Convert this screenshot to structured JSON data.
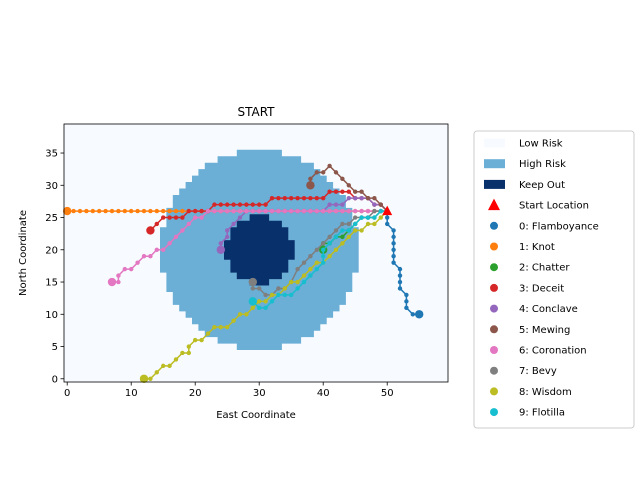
{
  "chart_data": {
    "type": "scatter",
    "title": "START",
    "xlabel": "East Coordinate",
    "ylabel": "North Coordinate",
    "xlim": [
      -0.5,
      59.5
    ],
    "ylim": [
      -0.5,
      39.5
    ],
    "x_ticks": [
      0,
      10,
      20,
      30,
      40,
      50
    ],
    "y_ticks": [
      0,
      5,
      10,
      15,
      20,
      25,
      30,
      35
    ],
    "grid": false,
    "legend_placement": "outside right",
    "risk_map": {
      "low_risk_color": "#f7fbff",
      "high_risk_color": "#6baed6",
      "keep_out_color": "#08306b",
      "high_risk_center": [
        30,
        20
      ],
      "high_risk_radius": 15.3,
      "keep_out_center": [
        30,
        20
      ],
      "keep_out_radius": 5.3
    },
    "start_location": {
      "label": "Start Location",
      "x": 50,
      "y": 26,
      "color": "#ff0000"
    },
    "legend": [
      {
        "label": "Low Risk",
        "kind": "patch",
        "color": "#f7fbff"
      },
      {
        "label": "High Risk",
        "kind": "patch",
        "color": "#6baed6"
      },
      {
        "label": "Keep Out",
        "kind": "patch",
        "color": "#08306b"
      },
      {
        "label": "Start Location",
        "kind": "triangle",
        "color": "#ff0000"
      },
      {
        "label": "0: Flamboyance",
        "kind": "dot",
        "color": "#1f77b4"
      },
      {
        "label": "1: Knot",
        "kind": "dot",
        "color": "#ff7f0e"
      },
      {
        "label": "2: Chatter",
        "kind": "dot",
        "color": "#2ca02c"
      },
      {
        "label": "3: Deceit",
        "kind": "dot",
        "color": "#d62728"
      },
      {
        "label": "4: Conclave",
        "kind": "dot",
        "color": "#9467bd"
      },
      {
        "label": "5: Mewing",
        "kind": "dot",
        "color": "#8c564b"
      },
      {
        "label": "6: Coronation",
        "kind": "dot",
        "color": "#e377c2"
      },
      {
        "label": "7: Bevy",
        "kind": "dot",
        "color": "#7f7f7f"
      },
      {
        "label": "8: Wisdom",
        "kind": "dot",
        "color": "#bcbd22"
      },
      {
        "label": "9: Flotilla",
        "kind": "dot",
        "color": "#17becf"
      }
    ],
    "series": [
      {
        "name": "0: Flamboyance",
        "color": "#1f77b4",
        "points": [
          [
            50,
            26
          ],
          [
            50,
            25
          ],
          [
            50,
            24
          ],
          [
            51,
            23
          ],
          [
            51,
            22
          ],
          [
            51,
            21
          ],
          [
            51,
            20
          ],
          [
            51,
            19
          ],
          [
            51,
            18
          ],
          [
            52,
            17
          ],
          [
            52,
            16
          ],
          [
            52,
            15
          ],
          [
            52,
            14
          ],
          [
            53,
            13
          ],
          [
            53,
            12
          ],
          [
            53,
            11
          ],
          [
            54,
            10
          ],
          [
            55,
            10
          ]
        ]
      },
      {
        "name": "1: Knot",
        "color": "#ff7f0e",
        "points": [
          [
            50,
            26
          ],
          [
            49,
            26
          ],
          [
            48,
            26
          ],
          [
            47,
            26
          ],
          [
            46,
            26
          ],
          [
            45,
            26
          ],
          [
            44,
            26
          ],
          [
            43,
            26
          ],
          [
            42,
            26
          ],
          [
            41,
            26
          ],
          [
            40,
            26
          ],
          [
            39,
            26
          ],
          [
            38,
            26
          ],
          [
            37,
            26
          ],
          [
            36,
            26
          ],
          [
            35,
            26
          ],
          [
            34,
            26
          ],
          [
            33,
            26
          ],
          [
            32,
            26
          ],
          [
            31,
            26
          ],
          [
            30,
            26
          ],
          [
            29,
            26
          ],
          [
            28,
            26
          ],
          [
            27,
            26
          ],
          [
            26,
            26
          ],
          [
            25,
            26
          ],
          [
            24,
            26
          ],
          [
            23,
            26
          ],
          [
            22,
            26
          ],
          [
            21,
            26
          ],
          [
            20,
            26
          ],
          [
            19,
            26
          ],
          [
            18,
            26
          ],
          [
            17,
            26
          ],
          [
            16,
            26
          ],
          [
            15,
            26
          ],
          [
            14,
            26
          ],
          [
            13,
            26
          ],
          [
            12,
            26
          ],
          [
            11,
            26
          ],
          [
            10,
            26
          ],
          [
            9,
            26
          ],
          [
            8,
            26
          ],
          [
            7,
            26
          ],
          [
            6,
            26
          ],
          [
            5,
            26
          ],
          [
            4,
            26
          ],
          [
            3,
            26
          ],
          [
            2,
            26
          ],
          [
            1,
            26
          ],
          [
            0,
            26
          ]
        ]
      },
      {
        "name": "2: Chatter",
        "color": "#2ca02c",
        "points": [
          [
            50,
            26
          ],
          [
            49,
            26
          ],
          [
            48,
            25
          ],
          [
            47,
            25
          ],
          [
            46,
            25
          ],
          [
            45,
            24
          ],
          [
            44,
            23
          ],
          [
            43,
            22
          ],
          [
            42,
            22
          ],
          [
            41,
            21
          ],
          [
            40,
            21
          ],
          [
            40,
            20
          ]
        ]
      },
      {
        "name": "3: Deceit",
        "color": "#d62728",
        "points": [
          [
            50,
            26
          ],
          [
            49,
            27
          ],
          [
            48,
            27
          ],
          [
            47,
            28
          ],
          [
            46,
            28
          ],
          [
            45,
            28
          ],
          [
            44,
            29
          ],
          [
            43,
            29
          ],
          [
            42,
            29
          ],
          [
            41,
            29
          ],
          [
            40,
            28
          ],
          [
            39,
            28
          ],
          [
            38,
            28
          ],
          [
            37,
            28
          ],
          [
            36,
            28
          ],
          [
            35,
            28
          ],
          [
            34,
            28
          ],
          [
            33,
            28
          ],
          [
            32,
            28
          ],
          [
            31,
            27
          ],
          [
            30,
            27
          ],
          [
            29,
            27
          ],
          [
            28,
            27
          ],
          [
            27,
            27
          ],
          [
            26,
            27
          ],
          [
            25,
            27
          ],
          [
            24,
            27
          ],
          [
            23,
            27
          ],
          [
            22,
            26
          ],
          [
            21,
            26
          ],
          [
            20,
            26
          ],
          [
            19,
            26
          ],
          [
            18,
            25
          ],
          [
            17,
            25
          ],
          [
            16,
            25
          ],
          [
            15,
            25
          ],
          [
            14,
            24
          ],
          [
            13,
            23
          ]
        ]
      },
      {
        "name": "4: Conclave",
        "color": "#9467bd",
        "points": [
          [
            50,
            26
          ],
          [
            49,
            27
          ],
          [
            48,
            27
          ],
          [
            47,
            28
          ],
          [
            46,
            28
          ],
          [
            45,
            28
          ],
          [
            44,
            28
          ],
          [
            43,
            27
          ],
          [
            42,
            27
          ],
          [
            41,
            27
          ],
          [
            40,
            26
          ],
          [
            39,
            26
          ],
          [
            38,
            26
          ],
          [
            37,
            26
          ],
          [
            36,
            26
          ],
          [
            35,
            26
          ],
          [
            34,
            26
          ],
          [
            33,
            26
          ],
          [
            32,
            26
          ],
          [
            31,
            26
          ],
          [
            30,
            26
          ],
          [
            29,
            26
          ],
          [
            28,
            26
          ],
          [
            27,
            25
          ],
          [
            26,
            24
          ],
          [
            25,
            23
          ],
          [
            25,
            22
          ],
          [
            24,
            21
          ],
          [
            24,
            20
          ]
        ]
      },
      {
        "name": "5: Mewing",
        "color": "#8c564b",
        "points": [
          [
            50,
            26
          ],
          [
            49,
            27
          ],
          [
            48,
            28
          ],
          [
            47,
            28
          ],
          [
            46,
            29
          ],
          [
            45,
            29
          ],
          [
            44,
            30
          ],
          [
            43,
            31
          ],
          [
            42,
            32
          ],
          [
            41,
            33
          ],
          [
            40,
            32
          ],
          [
            39,
            32
          ],
          [
            38,
            31
          ],
          [
            38,
            30
          ]
        ]
      },
      {
        "name": "6: Coronation",
        "color": "#e377c2",
        "points": [
          [
            50,
            26
          ],
          [
            49,
            26
          ],
          [
            48,
            26
          ],
          [
            47,
            26
          ],
          [
            46,
            26
          ],
          [
            45,
            26
          ],
          [
            44,
            26
          ],
          [
            43,
            26
          ],
          [
            42,
            26
          ],
          [
            41,
            26
          ],
          [
            40,
            26
          ],
          [
            39,
            26
          ],
          [
            38,
            26
          ],
          [
            37,
            26
          ],
          [
            36,
            26
          ],
          [
            35,
            26
          ],
          [
            34,
            26
          ],
          [
            33,
            26
          ],
          [
            32,
            26
          ],
          [
            31,
            26
          ],
          [
            30,
            26
          ],
          [
            29,
            26
          ],
          [
            28,
            26
          ],
          [
            27,
            26
          ],
          [
            26,
            26
          ],
          [
            25,
            26
          ],
          [
            24,
            26
          ],
          [
            23,
            26
          ],
          [
            22,
            26
          ],
          [
            21,
            25
          ],
          [
            20,
            25
          ],
          [
            19,
            24
          ],
          [
            18,
            23
          ],
          [
            17,
            22
          ],
          [
            16,
            21
          ],
          [
            15,
            20
          ],
          [
            14,
            20
          ],
          [
            13,
            19
          ],
          [
            12,
            19
          ],
          [
            11,
            18
          ],
          [
            10,
            17
          ],
          [
            9,
            17
          ],
          [
            8,
            16
          ],
          [
            8,
            15
          ],
          [
            7,
            15
          ]
        ]
      },
      {
        "name": "7: Bevy",
        "color": "#7f7f7f",
        "points": [
          [
            50,
            26
          ],
          [
            49,
            26
          ],
          [
            48,
            26
          ],
          [
            47,
            25
          ],
          [
            46,
            25
          ],
          [
            45,
            25
          ],
          [
            44,
            24
          ],
          [
            43,
            24
          ],
          [
            42,
            23
          ],
          [
            41,
            22
          ],
          [
            40,
            21
          ],
          [
            39,
            20
          ],
          [
            38,
            19
          ],
          [
            37,
            18
          ],
          [
            36,
            17
          ],
          [
            35,
            15
          ],
          [
            34,
            14
          ],
          [
            33,
            14
          ],
          [
            32,
            13
          ],
          [
            31,
            13
          ],
          [
            30,
            14
          ],
          [
            29,
            14
          ],
          [
            29,
            15
          ]
        ]
      },
      {
        "name": "8: Wisdom",
        "color": "#bcbd22",
        "points": [
          [
            50,
            26
          ],
          [
            49,
            25
          ],
          [
            48,
            24
          ],
          [
            47,
            24
          ],
          [
            46,
            23
          ],
          [
            45,
            23
          ],
          [
            44,
            22
          ],
          [
            43,
            21
          ],
          [
            42,
            20
          ],
          [
            41,
            19
          ],
          [
            40,
            18
          ],
          [
            39,
            18
          ],
          [
            38,
            17
          ],
          [
            37,
            16
          ],
          [
            36,
            15
          ],
          [
            35,
            15
          ],
          [
            34,
            14
          ],
          [
            33,
            13
          ],
          [
            32,
            13
          ],
          [
            31,
            12
          ],
          [
            30,
            12
          ],
          [
            29,
            11
          ],
          [
            28,
            10
          ],
          [
            27,
            10
          ],
          [
            26,
            9
          ],
          [
            25,
            8
          ],
          [
            24,
            8
          ],
          [
            23,
            8
          ],
          [
            22,
            7
          ],
          [
            21,
            6
          ],
          [
            20,
            6
          ],
          [
            19,
            5
          ],
          [
            19,
            4
          ],
          [
            18,
            4
          ],
          [
            17,
            3
          ],
          [
            16,
            2
          ],
          [
            15,
            2
          ],
          [
            14,
            1
          ],
          [
            13,
            0
          ],
          [
            12,
            0
          ]
        ]
      },
      {
        "name": "9: Flotilla",
        "color": "#17becf",
        "points": [
          [
            50,
            26
          ],
          [
            49,
            26
          ],
          [
            48,
            25
          ],
          [
            47,
            25
          ],
          [
            46,
            25
          ],
          [
            45,
            24
          ],
          [
            44,
            23
          ],
          [
            43,
            23
          ],
          [
            42,
            22
          ],
          [
            41,
            21
          ],
          [
            40,
            20
          ],
          [
            40,
            19
          ],
          [
            40,
            18
          ],
          [
            39,
            17
          ],
          [
            38,
            16
          ],
          [
            37,
            15
          ],
          [
            36,
            14
          ],
          [
            35,
            13
          ],
          [
            34,
            13
          ],
          [
            33,
            13
          ],
          [
            32,
            12
          ],
          [
            31,
            11
          ],
          [
            30,
            11
          ],
          [
            29,
            12
          ]
        ]
      }
    ]
  }
}
